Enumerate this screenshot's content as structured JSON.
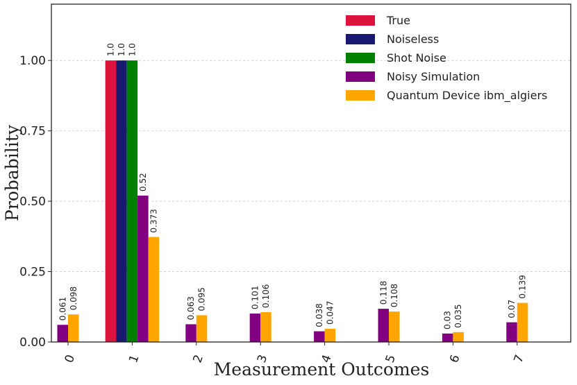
{
  "chart_data": {
    "type": "bar",
    "title": "",
    "xlabel": "Measurement Outcomes",
    "ylabel": "Probability",
    "ylim": [
      0,
      1.2
    ],
    "yticks": [
      "0.00",
      "0.25",
      "0.50",
      "0.75",
      "1.00"
    ],
    "categories": [
      "0",
      "1",
      "2",
      "3",
      "4",
      "5",
      "6",
      "7"
    ],
    "grid": "horizontal dashed",
    "legend_position": "top-right",
    "series": [
      {
        "name": "True",
        "color": "#dc143c",
        "values": [
          0,
          1.0,
          0,
          0,
          0,
          0,
          0,
          0
        ],
        "labels": [
          "",
          "1.0",
          "",
          "",
          "",
          "",
          "",
          ""
        ]
      },
      {
        "name": "Noiseless",
        "color": "#191970",
        "values": [
          0,
          1.0,
          0,
          0,
          0,
          0,
          0,
          0
        ],
        "labels": [
          "",
          "1.0",
          "",
          "",
          "",
          "",
          "",
          ""
        ]
      },
      {
        "name": "Shot Noise",
        "color": "#008000",
        "values": [
          0,
          1.0,
          0,
          0,
          0,
          0,
          0,
          0
        ],
        "labels": [
          "",
          "1.0",
          "",
          "",
          "",
          "",
          "",
          ""
        ]
      },
      {
        "name": "Noisy Simulation",
        "color": "#800080",
        "values": [
          0.061,
          0.52,
          0.063,
          0.101,
          0.038,
          0.118,
          0.03,
          0.07
        ],
        "labels": [
          "0.061",
          "0.52",
          "0.063",
          "0.101",
          "0.038",
          "0.118",
          "0.03",
          "0.07"
        ]
      },
      {
        "name": "Quantum Device ibm_algiers",
        "color": "#ffa500",
        "values": [
          0.098,
          0.373,
          0.095,
          0.106,
          0.047,
          0.108,
          0.035,
          0.139
        ],
        "labels": [
          "0.098",
          "0.373",
          "0.095",
          "0.106",
          "0.047",
          "0.108",
          "0.035",
          "0.139"
        ]
      }
    ]
  }
}
